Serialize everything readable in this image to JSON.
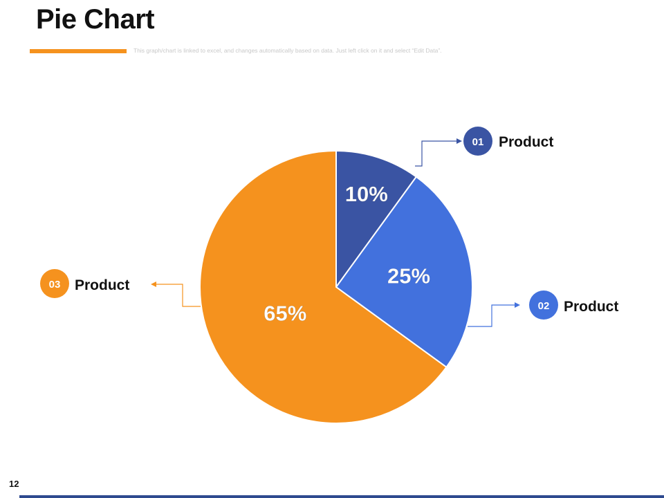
{
  "slide": {
    "title": "Pie Chart",
    "subtitle": "This graph/chart is linked to excel, and changes automatically based on data. Just left click on it and select “Edit Data”.",
    "page_number": "12"
  },
  "colors": {
    "accent": "#F5921E",
    "product1": "#3A54A3",
    "product2": "#4271DD",
    "product3": "#F5921E",
    "footer": "#2E4A8F"
  },
  "chart_data": {
    "type": "pie",
    "slices": [
      {
        "marker": "01",
        "name": "Product",
        "value": 10,
        "label": "10%",
        "color": "#3A54A3"
      },
      {
        "marker": "02",
        "name": "Product",
        "value": 25,
        "label": "25%",
        "color": "#4271DD"
      },
      {
        "marker": "03",
        "name": "Product",
        "value": 65,
        "label": "65%",
        "color": "#F5921E"
      }
    ]
  }
}
